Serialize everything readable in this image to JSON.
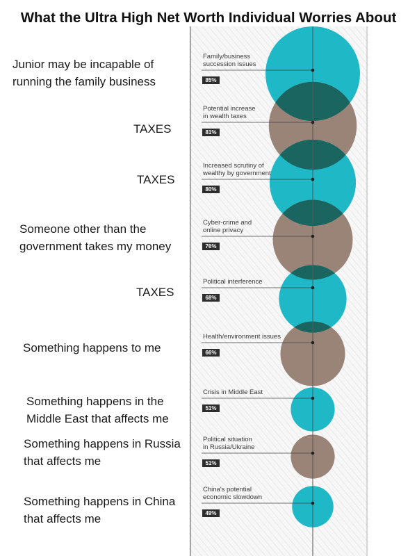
{
  "title": "What the Ultra High Net Worth Individual Worries About",
  "annotations": [
    "Junior may be incapable of\nrunning the family business",
    "TAXES",
    "TAXES",
    "Someone other than the\ngovernment takes my money",
    "TAXES",
    "Something happens to me",
    "Something happens in the\nMiddle East that affects me",
    "Something happens in Russia\nthat affects me",
    "Something happens in China\nthat affects me"
  ],
  "colors": {
    "teal": "#1fb8c6",
    "taupe": "#9a8478",
    "overlap": "#1b6560",
    "badge": "#2d2d2d"
  },
  "chart_data": {
    "type": "bubble",
    "title": "",
    "items": [
      {
        "category": [
          "Family/business",
          "succession issues"
        ],
        "value": 85,
        "label": "85%",
        "color": "teal"
      },
      {
        "category": [
          "Potential increase",
          "in wealth taxes"
        ],
        "value": 81,
        "label": "81%",
        "color": "taupe"
      },
      {
        "category": [
          "Increased scrutiny of",
          "wealthy by government"
        ],
        "value": 80,
        "label": "80%",
        "color": "teal"
      },
      {
        "category": [
          "Cyber-crime and",
          "online privacy"
        ],
        "value": 76,
        "label": "76%",
        "color": "taupe"
      },
      {
        "category": [
          "Political interference"
        ],
        "value": 68,
        "label": "68%",
        "color": "teal"
      },
      {
        "category": [
          "Health/environment issues"
        ],
        "value": 66,
        "label": "66%",
        "color": "taupe"
      },
      {
        "category": [
          "Crisis in Middle East"
        ],
        "value": 51,
        "label": "51%",
        "color": "teal"
      },
      {
        "category": [
          "Political situation",
          "in Russia/Ukraine"
        ],
        "value": 51,
        "label": "51%",
        "color": "taupe"
      },
      {
        "category": [
          "China's potential",
          "economic slowdown"
        ],
        "value": 49,
        "label": "49%",
        "color": "teal"
      }
    ]
  }
}
